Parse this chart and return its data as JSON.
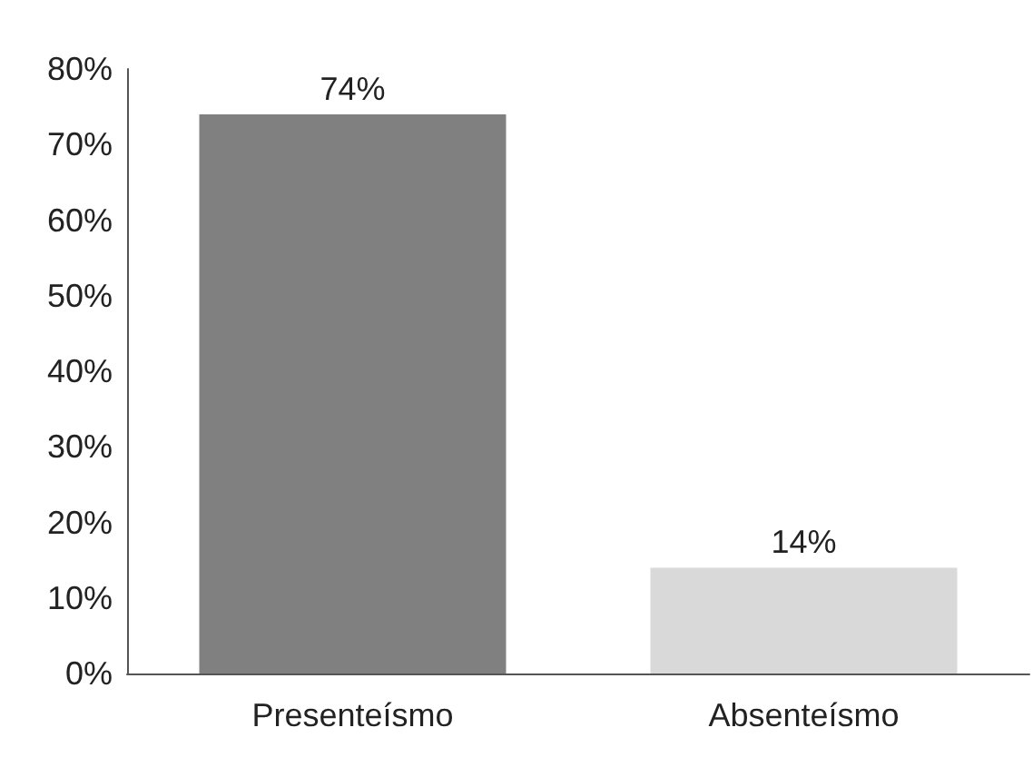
{
  "chart_data": {
    "type": "bar",
    "categories": [
      "Presenteísmo",
      "Absenteísmo"
    ],
    "values": [
      74,
      14
    ],
    "colors": [
      "#808080",
      "#d9d9d9"
    ],
    "value_labels": [
      "74%",
      "14%"
    ],
    "ylim": [
      0,
      80
    ],
    "yticks": [
      {
        "value": 0,
        "label": "0%"
      },
      {
        "value": 10,
        "label": "10%"
      },
      {
        "value": 20,
        "label": "20%"
      },
      {
        "value": 30,
        "label": "30%"
      },
      {
        "value": 40,
        "label": "40%"
      },
      {
        "value": 50,
        "label": "50%"
      },
      {
        "value": 60,
        "label": "60%"
      },
      {
        "value": 70,
        "label": "70%"
      },
      {
        "value": 80,
        "label": "80%"
      }
    ],
    "grid": false
  }
}
